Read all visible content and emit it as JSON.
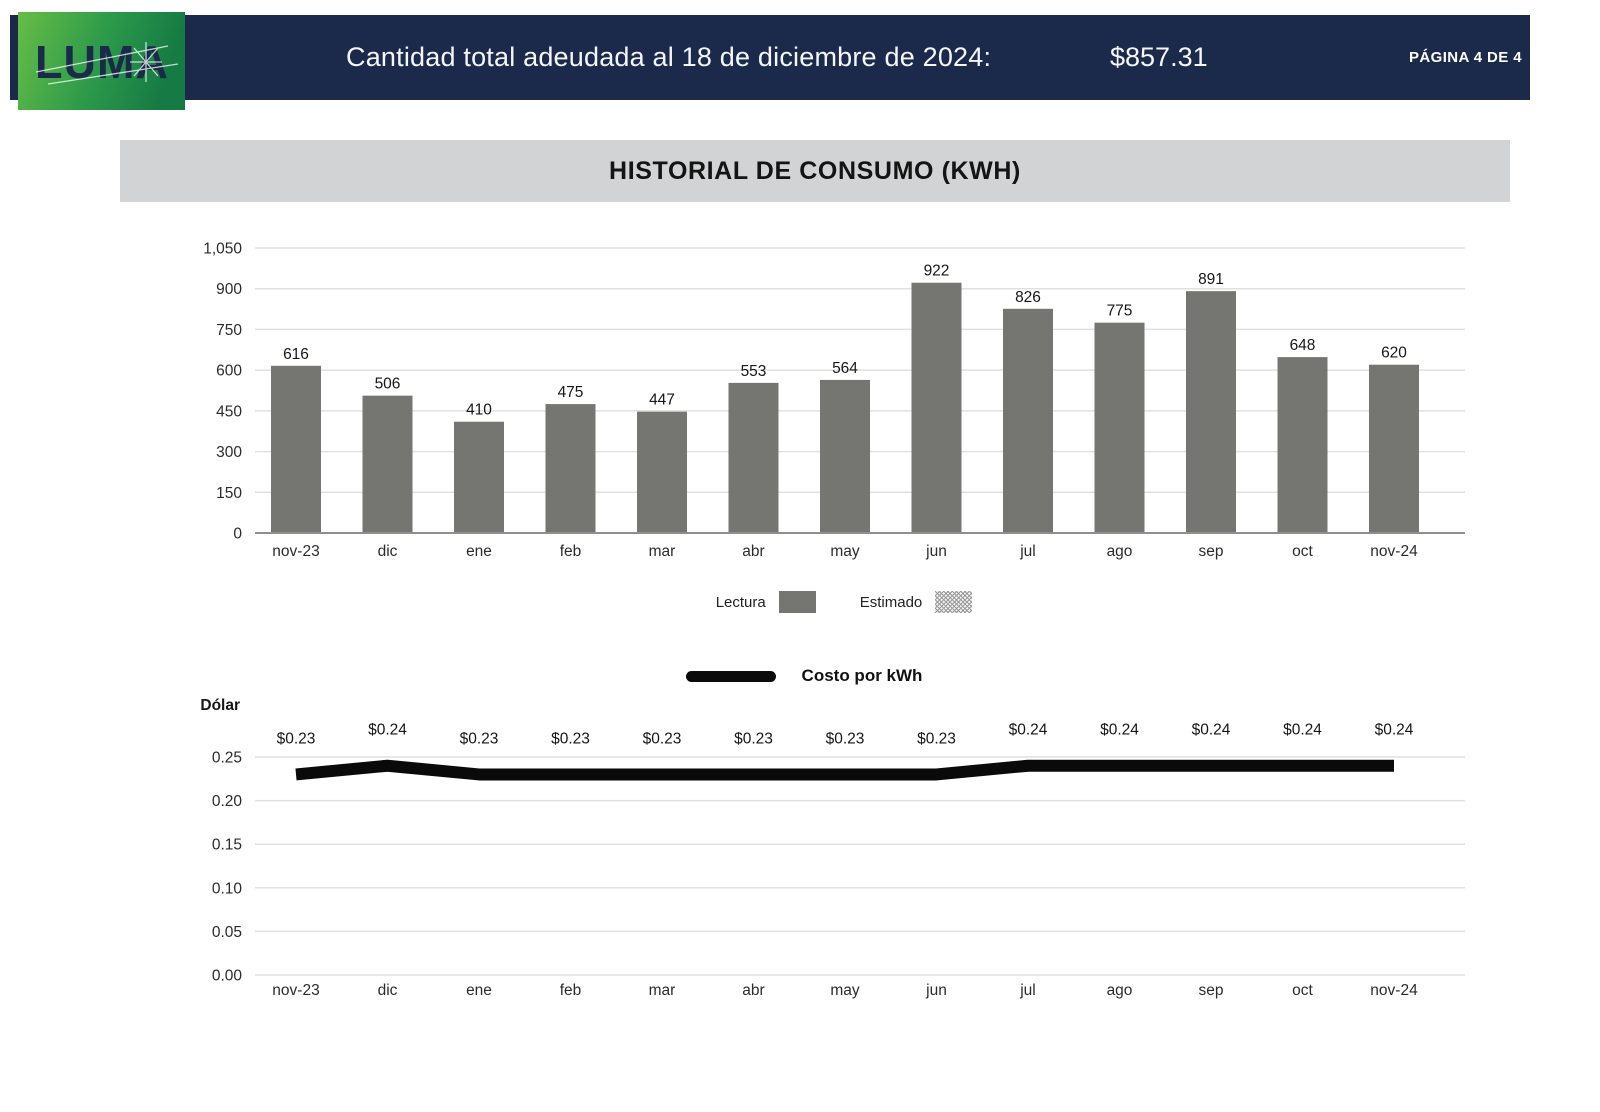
{
  "header": {
    "logo_text": "LUMA",
    "title_label": "Cantidad total adeudada al 18 de diciembre de 2024:",
    "amount": "$857.31",
    "page_indicator": "PÁGINA 4 DE 4"
  },
  "section": {
    "title": "HISTORIAL DE CONSUMO (KWH)"
  },
  "colors": {
    "navy": "#1B2A4A",
    "bar": "#757571",
    "banner_gray": "#D2D3D4",
    "grid": "#E0E0E0",
    "axis": "#8F8F8F",
    "line": "#0A0A0A",
    "logo_green_light": "#66BD45",
    "logo_green_dark": "#157A43"
  },
  "chart_data": [
    {
      "type": "bar",
      "title": "HISTORIAL DE CONSUMO (KWH)",
      "categories": [
        "nov-23",
        "dic",
        "ene",
        "feb",
        "mar",
        "abr",
        "may",
        "jun",
        "jul",
        "ago",
        "sep",
        "oct",
        "nov-24"
      ],
      "values": [
        616,
        506,
        410,
        475,
        447,
        553,
        564,
        922,
        826,
        775,
        891,
        648,
        620
      ],
      "data_labels": [
        "616",
        "506",
        "410",
        "475",
        "447",
        "553",
        "564",
        "922",
        "826",
        "775",
        "891",
        "648",
        "620"
      ],
      "xlabel": "",
      "ylabel": "",
      "ylim": [
        0,
        1050
      ],
      "yticks": [
        0,
        150,
        300,
        450,
        600,
        750,
        900,
        1050
      ],
      "ytick_labels": [
        "0",
        "150",
        "300",
        "450",
        "600",
        "750",
        "900",
        "1,050"
      ],
      "grid": true,
      "legend_position": "bottom-center",
      "legend": [
        {
          "label": "Lectura",
          "style": "solid"
        },
        {
          "label": "Estimado",
          "style": "hatched"
        }
      ]
    },
    {
      "type": "line",
      "title": "Costo por kWh",
      "categories": [
        "nov-23",
        "dic",
        "ene",
        "feb",
        "mar",
        "abr",
        "may",
        "jun",
        "jul",
        "ago",
        "sep",
        "oct",
        "nov-24"
      ],
      "values": [
        0.23,
        0.24,
        0.23,
        0.23,
        0.23,
        0.23,
        0.23,
        0.23,
        0.24,
        0.24,
        0.24,
        0.24,
        0.24
      ],
      "data_labels": [
        "$0.23",
        "$0.24",
        "$0.23",
        "$0.23",
        "$0.23",
        "$0.23",
        "$0.23",
        "$0.23",
        "$0.24",
        "$0.24",
        "$0.24",
        "$0.24",
        "$0.24"
      ],
      "xlabel": "",
      "ylabel": "Dólar",
      "ylim": [
        0,
        0.25
      ],
      "yticks": [
        0,
        0.05,
        0.1,
        0.15,
        0.2,
        0.25
      ],
      "ytick_labels": [
        "0.00",
        "0.05",
        "0.10",
        "0.15",
        "0.20",
        "0.25"
      ],
      "grid": true,
      "legend_position": "top-center"
    }
  ]
}
